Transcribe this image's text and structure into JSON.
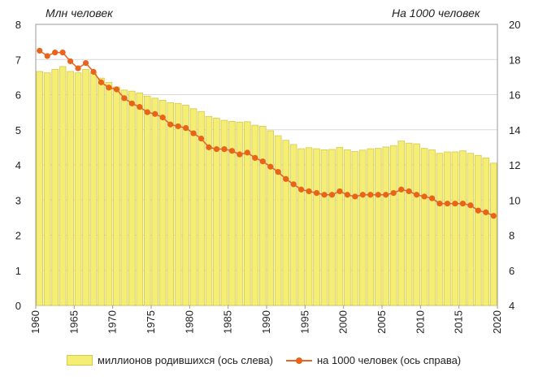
{
  "header": {
    "left_unit": "Млн  человек",
    "right_unit": "На 1000 человек"
  },
  "legend": {
    "bars_label": "миллионов  родившихся (ось слева)",
    "line_label": "на 1000 человек (ось справа)"
  },
  "colors": {
    "bar_fill": "#f4ee74",
    "bar_stroke": "#d8c94a",
    "line": "#e8641c",
    "grid": "#d9d9d9"
  },
  "chart_data": {
    "type": "bar",
    "title": "",
    "xlabel": "",
    "ylabel": "Млн  человек",
    "y2label": "На 1000 человек",
    "grid": true,
    "legend_position": "bottom",
    "x": [
      1961,
      1962,
      1963,
      1964,
      1965,
      1966,
      1967,
      1968,
      1969,
      1970,
      1971,
      1972,
      1973,
      1974,
      1975,
      1976,
      1977,
      1978,
      1979,
      1980,
      1981,
      1982,
      1983,
      1984,
      1985,
      1986,
      1987,
      1988,
      1989,
      1990,
      1991,
      1992,
      1993,
      1994,
      1995,
      1996,
      1997,
      1998,
      1999,
      2000,
      2001,
      2002,
      2003,
      2004,
      2005,
      2006,
      2007,
      2008,
      2009,
      2010,
      2011,
      2012,
      2013,
      2014,
      2015,
      2016,
      2017,
      2018,
      2019,
      2020
    ],
    "x_ticks": [
      1960,
      1965,
      1970,
      1975,
      1980,
      1985,
      1990,
      1995,
      2000,
      2005,
      2010,
      2015,
      2020
    ],
    "ylim": [
      0,
      8
    ],
    "y_ticks": [
      0,
      1,
      2,
      3,
      4,
      5,
      6,
      7,
      8
    ],
    "y2lim": [
      4,
      20
    ],
    "y2_ticks": [
      4,
      6,
      8,
      10,
      12,
      14,
      16,
      18,
      20
    ],
    "series": [
      {
        "name": "миллионов  родившихся (ось слева)",
        "type": "bar",
        "axis": "left",
        "values": [
          6.66,
          6.62,
          6.72,
          6.8,
          6.66,
          6.62,
          6.72,
          6.62,
          6.47,
          6.35,
          6.22,
          6.13,
          6.1,
          6.05,
          5.96,
          5.9,
          5.84,
          5.77,
          5.75,
          5.7,
          5.6,
          5.52,
          5.38,
          5.33,
          5.27,
          5.24,
          5.22,
          5.23,
          5.13,
          5.1,
          4.97,
          4.83,
          4.7,
          4.58,
          4.46,
          4.49,
          4.46,
          4.43,
          4.44,
          4.5,
          4.43,
          4.38,
          4.42,
          4.46,
          4.47,
          4.51,
          4.55,
          4.68,
          4.62,
          4.6,
          4.47,
          4.43,
          4.33,
          4.37,
          4.37,
          4.4,
          4.33,
          4.27,
          4.2,
          4.05
        ]
      },
      {
        "name": "на 1000 человек (ось справа)",
        "type": "line",
        "axis": "right",
        "values": [
          18.5,
          18.2,
          18.4,
          18.4,
          17.9,
          17.5,
          17.8,
          17.3,
          16.7,
          16.4,
          16.3,
          15.8,
          15.5,
          15.3,
          15.0,
          14.9,
          14.7,
          14.3,
          14.2,
          14.1,
          13.8,
          13.5,
          13.0,
          12.9,
          12.9,
          12.8,
          12.6,
          12.7,
          12.4,
          12.2,
          11.9,
          11.6,
          11.2,
          10.9,
          10.6,
          10.5,
          10.4,
          10.3,
          10.3,
          10.5,
          10.3,
          10.2,
          10.3,
          10.3,
          10.3,
          10.3,
          10.4,
          10.6,
          10.5,
          10.3,
          10.2,
          10.1,
          9.8,
          9.8,
          9.8,
          9.8,
          9.7,
          9.4,
          9.3,
          9.1
        ]
      }
    ]
  }
}
